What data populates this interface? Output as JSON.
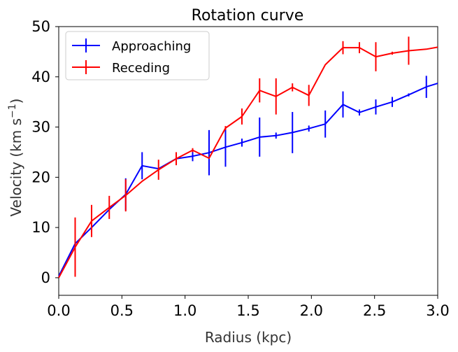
{
  "chart_data": {
    "type": "line",
    "title": "Rotation curve",
    "xlabel": "Radius (kpc)",
    "ylabel_prefix": "Velocity (km s",
    "ylabel_exp": "−1",
    "ylabel_suffix": ")",
    "xlim": [
      0,
      3.0
    ],
    "ylim": [
      -3.5,
      50
    ],
    "xticks": [
      0,
      0.5,
      1.0,
      1.5,
      2.0,
      2.5,
      3.0
    ],
    "xtick_labels": [
      "0.0",
      "0.5",
      "1.0",
      "1.5",
      "2.0",
      "2.5",
      "3.0"
    ],
    "yticks": [
      0,
      10,
      20,
      30,
      40,
      50
    ],
    "ytick_labels": [
      "0",
      "10",
      "20",
      "30",
      "40",
      "50"
    ],
    "grid": false,
    "legend_position": "top-left",
    "series": [
      {
        "name": "Approaching",
        "color": "#0000ff",
        "x": [
          0.0,
          0.13,
          0.26,
          0.4,
          0.53,
          0.66,
          0.79,
          0.93,
          1.06,
          1.19,
          1.32,
          1.45,
          1.59,
          1.72,
          1.85,
          1.98,
          2.11,
          2.25,
          2.38,
          2.51,
          2.64,
          2.77,
          2.91,
          3.0
        ],
        "y": [
          0.3,
          6.8,
          10.0,
          13.6,
          16.6,
          22.3,
          21.7,
          23.7,
          24.2,
          24.9,
          26.0,
          26.9,
          28.0,
          28.3,
          28.9,
          29.7,
          30.6,
          34.5,
          32.9,
          34.0,
          35.0,
          36.4,
          38.0,
          38.7
        ],
        "err": [
          0,
          0,
          1.0,
          0,
          3.2,
          2.7,
          0,
          0,
          1.0,
          4.5,
          3.9,
          0.8,
          3.9,
          0.6,
          4.1,
          0.6,
          2.7,
          2.6,
          0.6,
          1.5,
          1.0,
          0.3,
          2.2,
          0
        ]
      },
      {
        "name": "Receding",
        "color": "#ff0000",
        "x": [
          0.0,
          0.13,
          0.26,
          0.4,
          0.53,
          0.66,
          0.79,
          0.93,
          1.06,
          1.19,
          1.32,
          1.45,
          1.59,
          1.72,
          1.85,
          1.98,
          2.11,
          2.25,
          2.38,
          2.51,
          2.64,
          2.77,
          2.91,
          3.0
        ],
        "y": [
          0.0,
          6.1,
          11.3,
          14.0,
          16.4,
          19.2,
          21.5,
          23.7,
          25.4,
          23.8,
          29.8,
          32.1,
          37.3,
          36.1,
          37.9,
          36.3,
          42.4,
          45.8,
          45.8,
          44.0,
          44.7,
          45.2,
          45.5,
          45.9
        ],
        "err": [
          0,
          5.9,
          3.2,
          2.3,
          3.2,
          0,
          2.0,
          1.3,
          0.4,
          0,
          0.4,
          1.6,
          2.4,
          3.6,
          0.8,
          2.1,
          0,
          1.3,
          1.1,
          2.9,
          0.3,
          2.8,
          0,
          0
        ]
      }
    ]
  }
}
